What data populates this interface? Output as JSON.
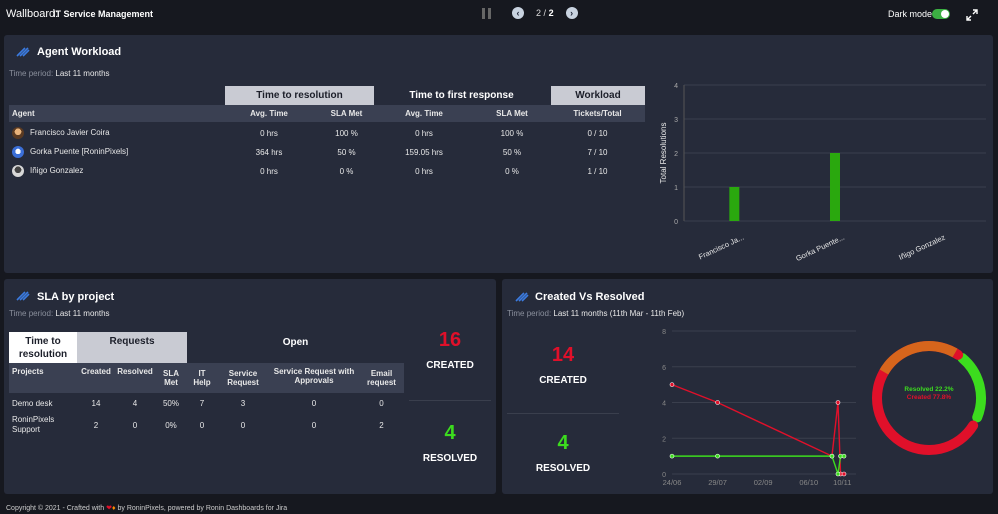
{
  "topbar": {
    "wallboard_label": "Wallboard:",
    "wallboard_name": "IT Service Management",
    "page_current": "2",
    "page_sep": "/",
    "page_total": "2",
    "dark_mode_label": "Dark mode",
    "dark_mode_on": true
  },
  "agent_workload": {
    "title": "Agent Workload",
    "period_label": "Time period:",
    "period_value": "Last 11 months",
    "group_headers": [
      "Time to resolution",
      "Time to first response",
      "Workload"
    ],
    "columns": [
      "Agent",
      "Avg. Time",
      "SLA Met",
      "Avg. Time",
      "SLA Met",
      "Tickets/Total"
    ],
    "rows": [
      {
        "agent": "Francisco Javier Coira",
        "res_avg": "0 hrs",
        "res_sla": "100 %",
        "fr_avg": "0 hrs",
        "fr_sla": "100 %",
        "tickets": "0 / 10"
      },
      {
        "agent": "Gorka Puente [RoninPixels]",
        "res_avg": "364 hrs",
        "res_sla": "50 %",
        "fr_avg": "159.05 hrs",
        "fr_sla": "50 %",
        "tickets": "7 / 10"
      },
      {
        "agent": "Iñigo Gonzalez",
        "res_avg": "0 hrs",
        "res_sla": "0 %",
        "fr_avg": "0 hrs",
        "fr_sla": "0 %",
        "tickets": "1 / 10"
      }
    ]
  },
  "sla_by_project": {
    "title": "SLA by project",
    "period_label": "Time period:",
    "period_value": "Last 11 months",
    "group_headers": [
      "Time to resolution",
      "Requests",
      "Open"
    ],
    "columns": [
      "Projects",
      "Created",
      "Resolved",
      "SLA Met",
      "IT Help",
      "Service Request",
      "Service Request with Approvals",
      "Email request"
    ],
    "rows": [
      {
        "project": "Demo desk",
        "created": "14",
        "resolved": "4",
        "sla": "50%",
        "it_help": "7",
        "service_request": "3",
        "sr_approvals": "0",
        "email": "0"
      },
      {
        "project": "RoninPixels Support",
        "created": "2",
        "resolved": "0",
        "sla": "0%",
        "it_help": "0",
        "service_request": "0",
        "sr_approvals": "0",
        "email": "2"
      }
    ],
    "created_value": "16",
    "created_label": "CREATED",
    "resolved_value": "4",
    "resolved_label": "RESOLVED"
  },
  "created_vs_resolved": {
    "title": "Created Vs Resolved",
    "period_label": "Time period:",
    "period_value": "Last 11 months (11th Mar - 11th Feb)",
    "created_value": "14",
    "created_label": "CREATED",
    "resolved_value": "4",
    "resolved_label": "RESOLVED",
    "donut_resolved": "Resolved 22.2%",
    "donut_created": "Created 77.8%"
  },
  "colors": {
    "created": "#e0102a",
    "resolved": "#3cdc1e",
    "bar": "#2aa80e",
    "panel": "#262b3a"
  },
  "footer": {
    "text_before": "Copyright © 2021 - Crafted with",
    "text_after": "by RoninPixels, powered by Ronin Dashboards for Jira"
  },
  "chart_data": [
    {
      "type": "bar",
      "categories": [
        "Francisco Ja...",
        "Gorka Puente...",
        "Iñigo Gonzalez"
      ],
      "values": [
        1,
        2,
        0
      ],
      "ylabel": "Total Resolutions",
      "ylim": [
        0,
        4
      ],
      "yticks": [
        "0",
        "1",
        "2",
        "3",
        "4"
      ],
      "grid": true
    },
    {
      "type": "line",
      "x_ticks": [
        "24/06",
        "29/07",
        "02/09",
        "06/10",
        "10/11"
      ],
      "ylim": [
        0,
        8
      ],
      "yticks": [
        "0",
        "2",
        "4",
        "6",
        "8"
      ],
      "series": [
        {
          "name": "Created",
          "x": [
            "24/06",
            "29/07",
            "06/10",
            "~03/11",
            "~06/11",
            "~10/11"
          ],
          "values": [
            5,
            4,
            1,
            4,
            0,
            0
          ],
          "color": "#e0102a"
        },
        {
          "name": "Resolved",
          "x": [
            "24/06",
            "29/07",
            "06/10",
            "~03/11",
            "~06/11",
            "~10/11"
          ],
          "values": [
            1,
            1,
            1,
            0,
            1,
            1
          ],
          "color": "#3cdc1e"
        }
      ]
    },
    {
      "type": "pie",
      "categories": [
        "Resolved",
        "Created"
      ],
      "values": [
        22.2,
        77.8
      ]
    }
  ]
}
